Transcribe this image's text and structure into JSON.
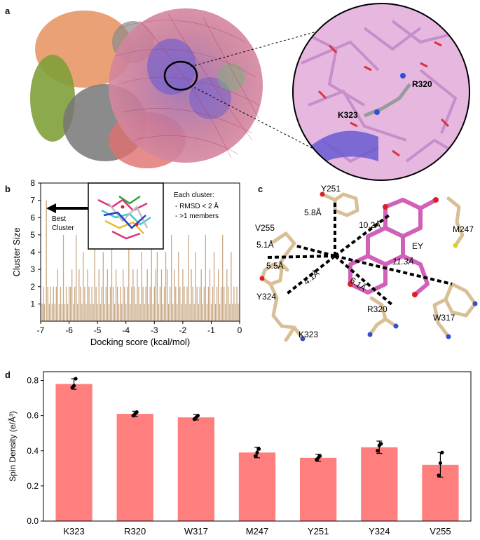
{
  "panels": {
    "a": {
      "letter": "a",
      "labels": [
        "R320",
        "K323"
      ]
    },
    "b": {
      "letter": "b",
      "inset_label": [
        "Best",
        "Cluster"
      ],
      "note_title": "Each cluster:",
      "note_lines": [
        "- RMSD < 2 Å",
        "- >1 members"
      ]
    },
    "c": {
      "letter": "c",
      "residues": [
        "Y251",
        "V255",
        "M247",
        "EY",
        "Y324",
        "K323",
        "R320",
        "W317"
      ],
      "distances": [
        "5.8Å",
        "10.2Å",
        "5.1Å",
        "5.5Å",
        "4.1Å",
        "11.3Å",
        "6.1Å"
      ]
    },
    "d": {
      "letter": "d"
    }
  },
  "chart_data": [
    {
      "type": "bar",
      "panel": "b",
      "xlabel": "Docking score (kcal/mol)",
      "ylabel": "Cluster Size",
      "xlim": [
        -7,
        0
      ],
      "ylim": [
        0,
        8
      ],
      "xticks": [
        -7,
        -6,
        -5,
        -4,
        -3,
        -2,
        -1,
        0
      ],
      "yticks": [
        1,
        2,
        3,
        4,
        5,
        6,
        7,
        8
      ],
      "color": "#c9a883",
      "x": [
        -6.95,
        -6.9,
        -6.87,
        -6.8,
        -6.75,
        -6.7,
        -6.66,
        -6.6,
        -6.55,
        -6.5,
        -6.45,
        -6.4,
        -6.35,
        -6.3,
        -6.25,
        -6.2,
        -6.15,
        -6.1,
        -6.05,
        -6.0,
        -5.95,
        -5.9,
        -5.85,
        -5.8,
        -5.75,
        -5.7,
        -5.65,
        -5.6,
        -5.55,
        -5.5,
        -5.45,
        -5.4,
        -5.35,
        -5.3,
        -5.25,
        -5.2,
        -5.15,
        -5.1,
        -5.05,
        -5.0,
        -4.95,
        -4.9,
        -4.85,
        -4.8,
        -4.75,
        -4.7,
        -4.65,
        -4.6,
        -4.55,
        -4.5,
        -4.45,
        -4.4,
        -4.35,
        -4.3,
        -4.25,
        -4.2,
        -4.15,
        -4.1,
        -4.05,
        -4.0,
        -3.95,
        -3.9,
        -3.85,
        -3.8,
        -3.75,
        -3.7,
        -3.65,
        -3.6,
        -3.55,
        -3.5,
        -3.45,
        -3.4,
        -3.35,
        -3.3,
        -3.25,
        -3.2,
        -3.15,
        -3.1,
        -3.05,
        -3.0,
        -2.95,
        -2.9,
        -2.85,
        -2.8,
        -2.75,
        -2.7,
        -2.65,
        -2.6,
        -2.55,
        -2.5,
        -2.45,
        -2.4,
        -2.35,
        -2.3,
        -2.25,
        -2.2,
        -2.15,
        -2.1,
        -2.05,
        -2.0,
        -1.95,
        -1.9,
        -1.85,
        -1.8,
        -1.75,
        -1.7,
        -1.65,
        -1.6,
        -1.55,
        -1.5,
        -1.45,
        -1.4,
        -1.35,
        -1.3,
        -1.25,
        -1.2,
        -1.15,
        -1.1,
        -1.05,
        -1.0,
        -0.95,
        -0.9,
        -0.85,
        -0.8,
        -0.75,
        -0.7,
        -0.65,
        -0.6,
        -0.55,
        -0.5,
        -0.45,
        -0.4,
        -0.35,
        -0.3,
        -0.25,
        -0.2,
        -0.15,
        -0.1,
        -0.05
      ],
      "values": [
        1,
        2,
        1,
        7,
        2,
        1,
        2,
        1,
        2,
        1,
        2,
        3,
        1,
        2,
        1,
        5,
        1,
        2,
        1,
        2,
        2,
        3,
        1,
        2,
        5,
        1,
        3,
        2,
        1,
        4,
        2,
        1,
        3,
        2,
        1,
        2,
        1,
        5,
        2,
        1,
        3,
        1,
        2,
        4,
        1,
        2,
        3,
        1,
        2,
        5,
        2,
        1,
        3,
        2,
        1,
        2,
        1,
        3,
        2,
        1,
        2,
        5,
        1,
        2,
        3,
        2,
        1,
        3,
        2,
        1,
        4,
        2,
        1,
        2,
        3,
        1,
        2,
        5,
        1,
        2,
        3,
        4,
        1,
        2,
        3,
        1,
        2,
        4,
        3,
        1,
        2,
        5,
        1,
        3,
        2,
        1,
        4,
        2,
        1,
        3,
        2,
        1,
        2,
        5,
        1,
        3,
        2,
        1,
        4,
        2,
        1,
        2,
        3,
        1,
        2,
        5,
        1,
        2,
        3,
        1,
        2,
        4,
        1,
        2,
        3,
        1,
        2,
        5,
        2,
        1,
        3,
        2,
        1,
        4,
        1,
        2,
        1,
        2,
        1
      ]
    },
    {
      "type": "bar",
      "panel": "d",
      "ylabel": "Spin Density (e/Å³)",
      "ylim": [
        0,
        0.85
      ],
      "yticks": [
        0.0,
        0.2,
        0.4,
        0.6,
        0.8
      ],
      "color": "#ff7f7f",
      "categories": [
        "K323",
        "R320",
        "W317",
        "M247",
        "Y251",
        "Y324",
        "V255"
      ],
      "values": [
        0.78,
        0.61,
        0.59,
        0.39,
        0.36,
        0.42,
        0.32
      ],
      "errors": [
        0.03,
        0.015,
        0.015,
        0.03,
        0.02,
        0.035,
        0.07
      ],
      "points": [
        [
          0.76,
          0.77,
          0.81
        ],
        [
          0.6,
          0.61,
          0.62
        ],
        [
          0.58,
          0.59,
          0.6
        ],
        [
          0.37,
          0.39,
          0.41
        ],
        [
          0.35,
          0.36,
          0.37
        ],
        [
          0.4,
          0.43,
          0.44
        ],
        [
          0.26,
          0.33,
          0.39
        ]
      ]
    }
  ]
}
